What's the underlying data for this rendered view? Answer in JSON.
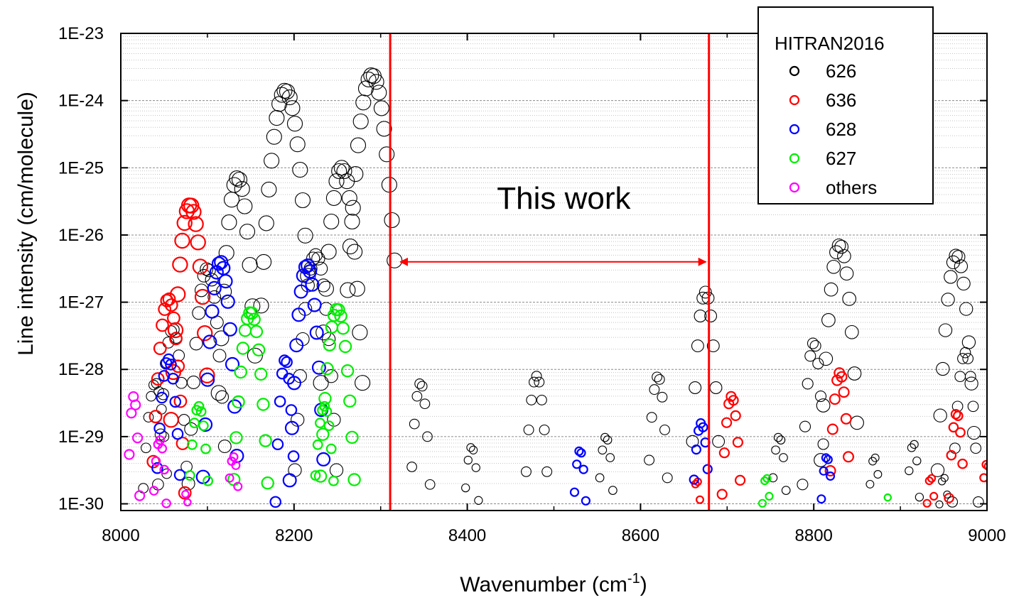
{
  "chart_data": {
    "type": "scatter",
    "title": "",
    "xlabel": "Wavenumber (cm",
    "xlabel_sup": "-1",
    "xlabel_close": ")",
    "ylabel": "Line intensity (cm/molecule)",
    "xlim": [
      8000,
      9000
    ],
    "ylim_log10": [
      -30.1,
      -23
    ],
    "y_scale": "log",
    "grid": "horizontal dotted",
    "x_ticks": [
      8000,
      8200,
      8400,
      8600,
      8800,
      9000
    ],
    "x_tick_labels": [
      "8000",
      "8200",
      "8400",
      "8600",
      "8800",
      "9000"
    ],
    "y_ticks_log10": [
      -23,
      -24,
      -25,
      -26,
      -27,
      -28,
      -29,
      -30
    ],
    "y_tick_labels": [
      "1E-23",
      "1E-24",
      "1E-25",
      "1E-26",
      "1E-27",
      "1E-28",
      "1E-29",
      "1E-30"
    ],
    "legend": {
      "title": "HITRAN2016",
      "position": "top-right",
      "entries": [
        {
          "name": "626",
          "color": "#000000"
        },
        {
          "name": "636",
          "color": "#ff0000"
        },
        {
          "name": "628",
          "color": "#0000ff"
        },
        {
          "name": "627",
          "color": "#00ee00"
        },
        {
          "name": "others",
          "color": "#ff00ff"
        }
      ]
    },
    "annotation": {
      "text": "This work",
      "range_x": [
        8311,
        8679
      ],
      "arrow_y_log10": -26.4,
      "line_color": "#ff0000"
    },
    "series": [
      {
        "name": "626",
        "color": "#000000",
        "bands": [
          {
            "center": 8190,
            "peak_log10": -23.85,
            "width": 28
          },
          {
            "center": 8290,
            "peak_log10": -23.62,
            "width": 28
          },
          {
            "center": 8135,
            "peak_log10": -25.15,
            "width": 22
          },
          {
            "center": 8255,
            "peak_log10": -25.0,
            "width": 24
          },
          {
            "center": 8225,
            "peak_log10": -26.3,
            "width": 24
          },
          {
            "center": 8100,
            "peak_log10": -26.5,
            "width": 22
          },
          {
            "center": 8060,
            "peak_log10": -27.4,
            "width": 20
          },
          {
            "center": 8040,
            "peak_log10": -28.2,
            "width": 20
          },
          {
            "center": 8346,
            "peak_log10": -28.2,
            "width": 16
          },
          {
            "center": 8405,
            "peak_log10": -29.15,
            "width": 16
          },
          {
            "center": 8480,
            "peak_log10": -28.1,
            "width": 18
          },
          {
            "center": 8560,
            "peak_log10": -29.0,
            "width": 16
          },
          {
            "center": 8620,
            "peak_log10": -28.1,
            "width": 16
          },
          {
            "center": 8675,
            "peak_log10": -26.85,
            "width": 18
          },
          {
            "center": 8760,
            "peak_log10": -29.0,
            "width": 16
          },
          {
            "center": 8800,
            "peak_log10": -27.6,
            "width": 16
          },
          {
            "center": 8830,
            "peak_log10": -26.15,
            "width": 22
          },
          {
            "center": 8870,
            "peak_log10": -29.3,
            "width": 14
          },
          {
            "center": 8915,
            "peak_log10": -29.1,
            "width": 14
          },
          {
            "center": 8965,
            "peak_log10": -26.3,
            "width": 22
          },
          {
            "center": 8975,
            "peak_log10": -27.75,
            "width": 18
          },
          {
            "center": 8950,
            "peak_log10": -29.6,
            "width": 14
          }
        ]
      },
      {
        "name": "636",
        "color": "#ff0000",
        "bands": [
          {
            "center": 8080,
            "peak_log10": -25.55,
            "width": 22
          },
          {
            "center": 8055,
            "peak_log10": -26.95,
            "width": 20
          },
          {
            "center": 8705,
            "peak_log10": -28.4,
            "width": 16
          },
          {
            "center": 8830,
            "peak_log10": -28.05,
            "width": 16
          },
          {
            "center": 8965,
            "peak_log10": -28.65,
            "width": 14
          },
          {
            "center": 8665,
            "peak_log10": -29.65,
            "width": 12
          },
          {
            "center": 8935,
            "peak_log10": -29.6,
            "width": 12
          },
          {
            "center": 9000,
            "peak_log10": -29.4,
            "width": 14
          }
        ]
      },
      {
        "name": "628",
        "color": "#0000ff",
        "bands": [
          {
            "center": 8115,
            "peak_log10": -26.4,
            "width": 20
          },
          {
            "center": 8215,
            "peak_log10": -26.45,
            "width": 20
          },
          {
            "center": 8055,
            "peak_log10": -27.85,
            "width": 18
          },
          {
            "center": 8190,
            "peak_log10": -27.85,
            "width": 14
          },
          {
            "center": 8530,
            "peak_log10": -29.2,
            "width": 14
          },
          {
            "center": 8670,
            "peak_log10": -28.8,
            "width": 16
          },
          {
            "center": 8815,
            "peak_log10": -29.3,
            "width": 14
          }
        ]
      },
      {
        "name": "627",
        "color": "#00ee00",
        "bands": [
          {
            "center": 8150,
            "peak_log10": -27.15,
            "width": 22
          },
          {
            "center": 8250,
            "peak_log10": -27.1,
            "width": 22
          },
          {
            "center": 8090,
            "peak_log10": -28.55,
            "width": 18
          },
          {
            "center": 8235,
            "peak_log10": -28.55,
            "width": 18
          },
          {
            "center": 8745,
            "peak_log10": -29.6,
            "width": 12
          },
          {
            "center": 8885,
            "peak_log10": -29.9,
            "width": 10
          }
        ]
      },
      {
        "name": "others",
        "color": "#ff00ff",
        "bands": [
          {
            "center": 8015,
            "peak_log10": -28.4,
            "width": 10
          },
          {
            "center": 8045,
            "peak_log10": -29.05,
            "width": 14
          },
          {
            "center": 8130,
            "peak_log10": -29.3,
            "width": 14
          },
          {
            "center": 8075,
            "peak_log10": -29.85,
            "width": 10
          }
        ]
      }
    ]
  }
}
